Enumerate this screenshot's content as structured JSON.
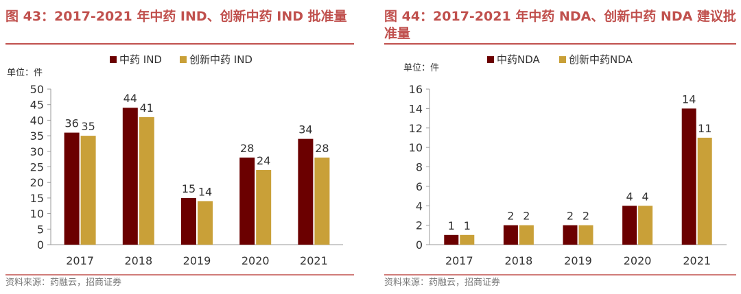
{
  "colors": {
    "title": "#C0504D",
    "rule": "#C0504D",
    "series1": "#6B0000",
    "series2": "#C9A038",
    "text": "#333333",
    "axis": "#999999",
    "source": "#777777"
  },
  "chart_data": [
    {
      "type": "bar",
      "title_lines": [
        "图 43：2017-2021 年中药 IND、创新中药 IND 批准量"
      ],
      "unit_label": "单位：件",
      "categories": [
        "2017",
        "2018",
        "2019",
        "2020",
        "2021"
      ],
      "series": [
        {
          "name": "中药 IND",
          "values": [
            36,
            44,
            15,
            28,
            34
          ]
        },
        {
          "name": "创新中药 IND",
          "values": [
            35,
            41,
            14,
            24,
            28
          ]
        }
      ],
      "ylim": [
        0,
        50
      ],
      "yticks": [
        0,
        5,
        10,
        15,
        20,
        25,
        30,
        35,
        40,
        45,
        50
      ],
      "legend": "top",
      "source": "资料来源：药融云，招商证券"
    },
    {
      "type": "bar",
      "title_lines": [
        "图 44：2017-2021 年中药 NDA、创新中药 NDA 建议批",
        "准量"
      ],
      "unit_label": "单位：件",
      "categories": [
        "2017",
        "2018",
        "2019",
        "2020",
        "2021"
      ],
      "series": [
        {
          "name": "中药NDA",
          "values": [
            1,
            2,
            2,
            4,
            14
          ]
        },
        {
          "name": "创新中药NDA",
          "values": [
            1,
            2,
            2,
            4,
            11
          ]
        }
      ],
      "ylim": [
        0,
        16
      ],
      "yticks": [
        0,
        2,
        4,
        6,
        8,
        10,
        12,
        14,
        16
      ],
      "legend": "top",
      "source": "资料来源：药融云，招商证券"
    }
  ]
}
